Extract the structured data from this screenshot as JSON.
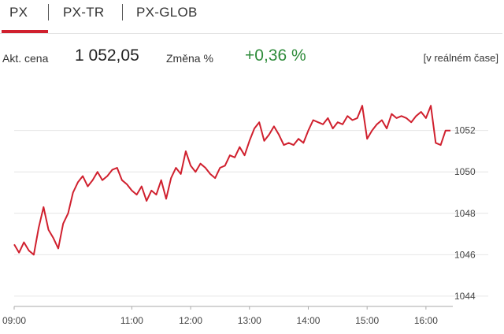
{
  "tabs": [
    {
      "label": "PX",
      "active": true
    },
    {
      "label": "PX-TR",
      "active": false
    },
    {
      "label": "PX-GLOB",
      "active": false
    }
  ],
  "quote": {
    "price_label": "Akt. cena",
    "price": "1 052,05",
    "change_label": "Změna %",
    "change": "+0,36 %",
    "realtime_label": "[v reálném čase]"
  },
  "colors": {
    "accent": "#d0202e",
    "line": "#d0202e",
    "positive": "#2e8b3a",
    "grid": "#e6e6e6"
  },
  "chart_data": {
    "type": "line",
    "series": [
      {
        "x": [
          "09:00",
          "09:05",
          "09:10",
          "09:15",
          "09:20",
          "09:25",
          "09:30",
          "09:35",
          "09:40",
          "09:45",
          "09:50",
          "09:55",
          "10:00",
          "10:05",
          "10:10",
          "10:15",
          "10:20",
          "10:25",
          "10:30",
          "10:35",
          "10:40",
          "10:45",
          "10:50",
          "10:55",
          "11:00",
          "11:05",
          "11:10",
          "11:15",
          "11:20",
          "11:25",
          "11:30",
          "11:35",
          "11:40",
          "11:45",
          "11:50",
          "11:55",
          "12:00",
          "12:05",
          "12:10",
          "12:15",
          "12:20",
          "12:25",
          "12:30",
          "12:35",
          "12:40",
          "12:45",
          "12:50",
          "12:55",
          "13:00",
          "13:05",
          "13:10",
          "13:15",
          "13:20",
          "13:25",
          "13:30",
          "13:35",
          "13:40",
          "13:45",
          "13:50",
          "13:55",
          "14:00",
          "14:05",
          "14:10",
          "14:15",
          "14:20",
          "14:25",
          "14:30",
          "14:35",
          "14:40",
          "14:45",
          "14:50",
          "14:55",
          "15:00",
          "15:05",
          "15:10",
          "15:15",
          "15:20",
          "15:25",
          "15:30",
          "15:35",
          "15:40",
          "15:45",
          "15:50",
          "15:55",
          "16:00",
          "16:05",
          "16:10",
          "16:15",
          "16:20",
          "16:25"
        ],
        "y": [
          1046.5,
          1046.1,
          1046.6,
          1046.2,
          1046.0,
          1047.3,
          1048.3,
          1047.2,
          1046.8,
          1046.3,
          1047.5,
          1048.0,
          1049.0,
          1049.5,
          1049.8,
          1049.3,
          1049.6,
          1050.0,
          1049.6,
          1049.8,
          1050.1,
          1050.2,
          1049.6,
          1049.4,
          1049.1,
          1048.9,
          1049.3,
          1048.6,
          1049.1,
          1048.9,
          1049.6,
          1048.7,
          1049.7,
          1050.2,
          1049.9,
          1051.0,
          1050.3,
          1050.0,
          1050.4,
          1050.2,
          1049.9,
          1049.7,
          1050.2,
          1050.3,
          1050.8,
          1050.7,
          1051.2,
          1050.8,
          1051.5,
          1052.1,
          1052.4,
          1051.5,
          1051.8,
          1052.2,
          1051.8,
          1051.3,
          1051.4,
          1051.3,
          1051.6,
          1051.4,
          1052.0,
          1052.5,
          1052.4,
          1052.3,
          1052.6,
          1052.1,
          1052.4,
          1052.3,
          1052.7,
          1052.5,
          1052.6,
          1053.2,
          1051.6,
          1052.0,
          1052.3,
          1052.5,
          1052.1,
          1052.8,
          1052.6,
          1052.7,
          1052.6,
          1052.4,
          1052.7,
          1052.9,
          1052.6,
          1053.2,
          1051.4,
          1051.3,
          1052.0,
          1052.0
        ]
      }
    ],
    "xlim": [
      "09:00",
      "16:25"
    ],
    "x_ticks": [
      "09:00",
      "11:00",
      "12:00",
      "13:00",
      "14:00",
      "15:00",
      "16:00"
    ],
    "ylim": [
      1043.5,
      1054.5
    ],
    "y_ticks": [
      1044,
      1046,
      1048,
      1050,
      1052
    ],
    "y_axis_position": "right",
    "grid": "horizontal"
  }
}
